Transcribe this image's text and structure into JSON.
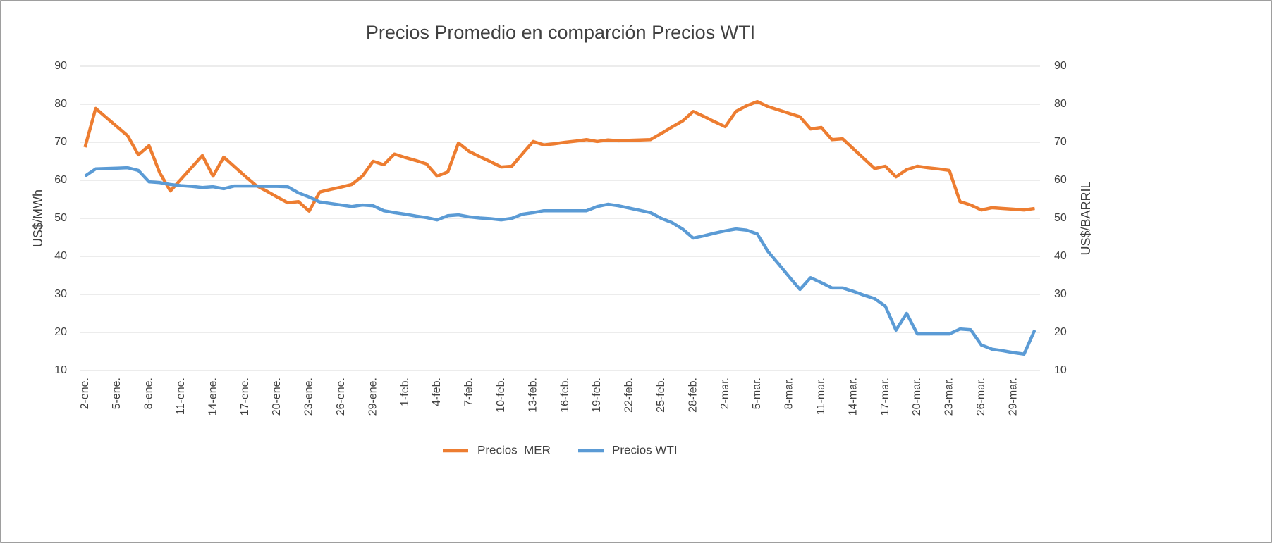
{
  "chart_data": {
    "type": "line",
    "title": "Precios Promedio en comparción Precios WTI",
    "y_label": "US$/MWh",
    "y2_label": "US$/BARRIL",
    "ylim": [
      10,
      90
    ],
    "yticks": [
      10,
      20,
      30,
      40,
      50,
      60,
      70,
      80,
      90
    ],
    "y2lim": [
      10,
      90
    ],
    "y2ticks": [
      10,
      20,
      30,
      40,
      50,
      60,
      70,
      80,
      90
    ],
    "grid": true,
    "legend": "bottom",
    "categories": [
      "2-ene.",
      null,
      null,
      "5-ene.",
      null,
      null,
      "8-ene.",
      null,
      null,
      "11-ene.",
      null,
      null,
      "14-ene.",
      null,
      null,
      "17-ene.",
      null,
      null,
      "20-ene.",
      null,
      null,
      "23-ene.",
      null,
      null,
      "26-ene.",
      null,
      null,
      "29-ene.",
      null,
      null,
      "1-feb.",
      null,
      null,
      "4-feb.",
      null,
      null,
      "7-feb.",
      null,
      null,
      "10-feb.",
      null,
      null,
      "13-feb.",
      null,
      null,
      "16-feb.",
      null,
      null,
      "19-feb.",
      null,
      null,
      "22-feb.",
      null,
      null,
      "25-feb.",
      null,
      null,
      "28-feb.",
      null,
      null,
      "2-mar.",
      null,
      null,
      "5-mar.",
      null,
      null,
      "8-mar.",
      null,
      null,
      "11-mar.",
      null,
      null,
      "14-mar.",
      null,
      null,
      "17-mar.",
      null,
      null,
      "20-mar.",
      null,
      null,
      "23-mar.",
      null,
      null,
      "26-mar.",
      null,
      null,
      "29-mar.",
      null,
      null
    ],
    "series": [
      {
        "name": "Precios  MER",
        "color": "#ED7D31",
        "axis": "y",
        "values": [
          68.7,
          78.9,
          76.5,
          74.1,
          71.7,
          66.7,
          69.1,
          62,
          57.2,
          60.3,
          63.4,
          66.5,
          61.1,
          66.1,
          63.6,
          61.1,
          58.7,
          57.2,
          55.6,
          54.1,
          54.4,
          51.9,
          56.9,
          57.6,
          58.2,
          58.9,
          61.1,
          65,
          64.1,
          66.9,
          66.0,
          65.2,
          64.3,
          61.1,
          62.2,
          69.8,
          67.6,
          66.2,
          64.9,
          63.5,
          63.7,
          67.0,
          70.2,
          69.3,
          69.6,
          70.0,
          70.3,
          70.7,
          70.2,
          70.6,
          70.4,
          70.5,
          70.6,
          70.7,
          72.3,
          74.0,
          75.6,
          78.1,
          76.8,
          75.4,
          74.1,
          78.1,
          79.6,
          80.7,
          79.4,
          78.5,
          77.6,
          76.7,
          73.5,
          73.9,
          70.7,
          70.9,
          68.3,
          65.7,
          63.1,
          63.7,
          60.9,
          62.8,
          63.7,
          63.3,
          63.0,
          62.6,
          54.4,
          53.5,
          52.2,
          52.8,
          52.6,
          52.4,
          52.2,
          52.6
        ]
      },
      {
        "name": "Precios WTI",
        "color": "#5B9BD5",
        "axis": "y2",
        "values": [
          61.1,
          63,
          63.1,
          63.2,
          63.3,
          62.6,
          59.6,
          59.4,
          58.9,
          58.6,
          58.4,
          58.1,
          58.3,
          57.8,
          58.5,
          58.5,
          58.5,
          58.4,
          58.4,
          58.3,
          56.7,
          55.6,
          54.3,
          53.9,
          53.5,
          53.1,
          53.5,
          53.3,
          52,
          51.5,
          51.1,
          50.6,
          50.2,
          49.6,
          50.7,
          50.9,
          50.4,
          50.1,
          49.9,
          49.6,
          50,
          51.1,
          51.5,
          52,
          52,
          52,
          52,
          52,
          53.1,
          53.7,
          53.3,
          52.7,
          52.1,
          51.5,
          50,
          48.9,
          47.2,
          44.8,
          45.4,
          46.1,
          46.7,
          47.2,
          46.9,
          45.9,
          41.3,
          38.0,
          34.6,
          31.3,
          34.4,
          33.1,
          31.7,
          31.7,
          30.8,
          29.8,
          28.9,
          26.9,
          20.6,
          25,
          19.6,
          19.6,
          19.6,
          19.6,
          20.9,
          20.7,
          16.7,
          15.6,
          15.2,
          14.7,
          14.3,
          20.6
        ]
      }
    ]
  }
}
